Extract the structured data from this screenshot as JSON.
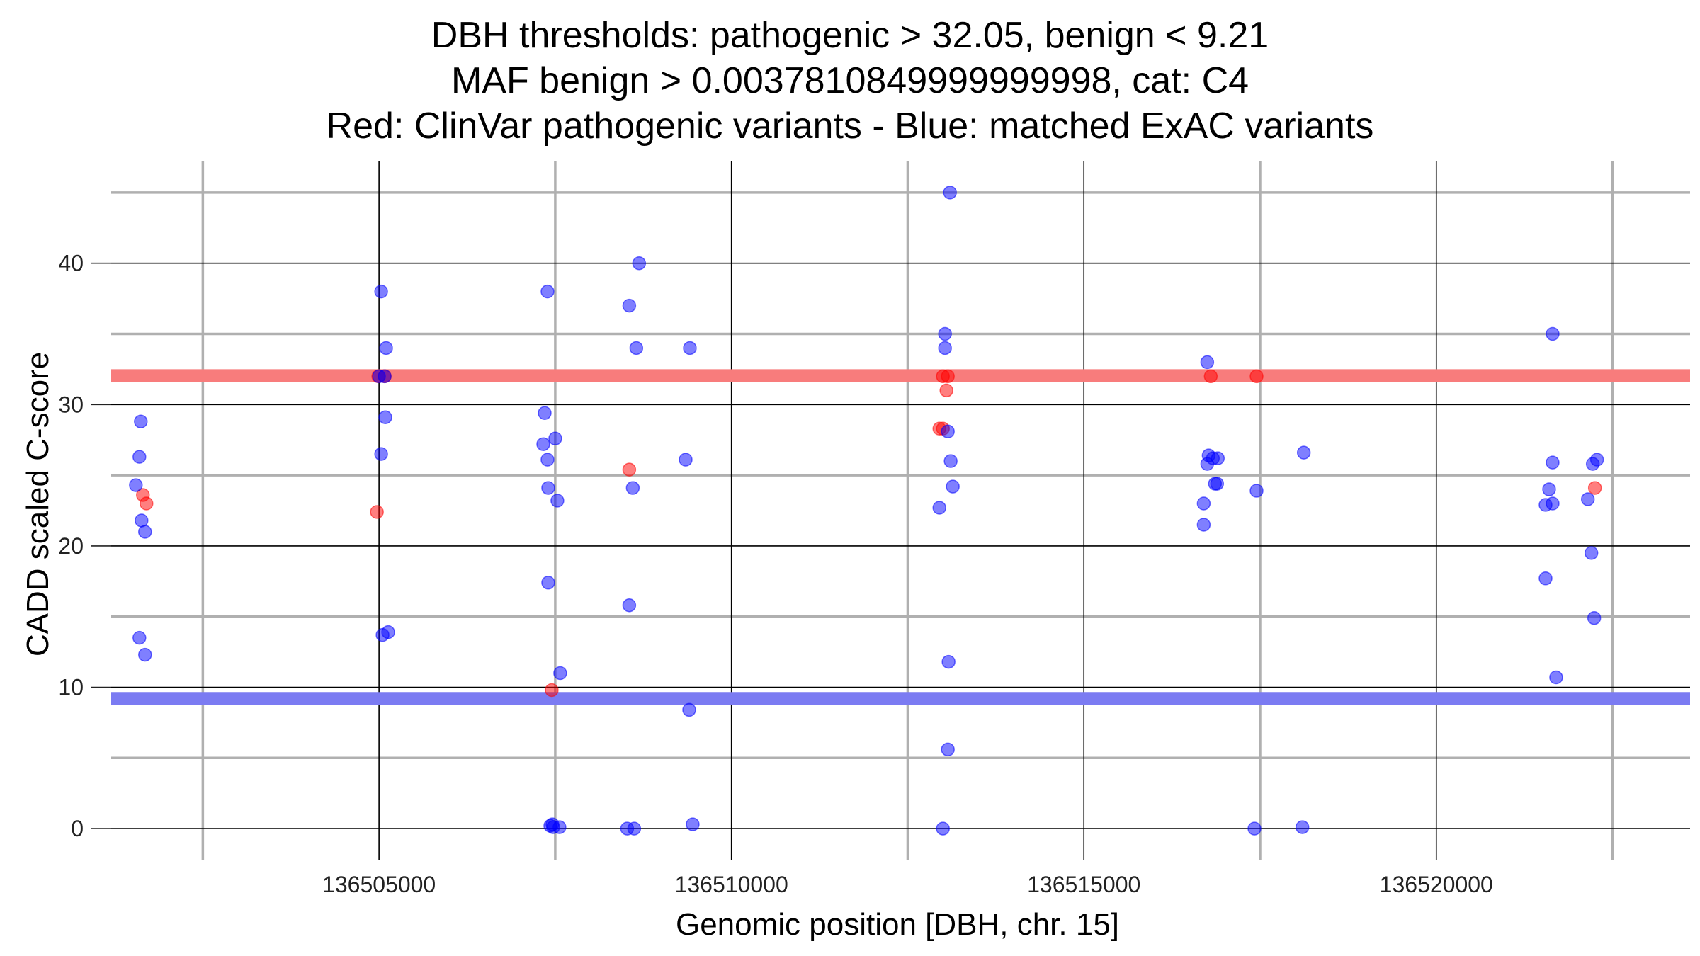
{
  "chart_data": {
    "type": "scatter",
    "title_lines": [
      "DBH thresholds: pathogenic > 32.05, benign < 9.21",
      "MAF benign > 0.0037810849999999998, cat: C4",
      "Red: ClinVar pathogenic variants - Blue: matched ExAC variants"
    ],
    "xlabel": "Genomic position [DBH, chr. 15]",
    "ylabel": "CADD scaled C-score",
    "xlim": [
      136501200,
      136523600
    ],
    "ylim": [
      -2.2,
      47.2
    ],
    "x_major_ticks": [
      136505000,
      136510000,
      136515000,
      136520000
    ],
    "x_minor_ticks": [
      136502500,
      136507500,
      136512500,
      136517500,
      136522500
    ],
    "y_major_ticks": [
      0,
      10,
      20,
      30,
      40
    ],
    "y_minor_ticks": [
      5,
      15,
      25,
      35,
      45
    ],
    "grid": true,
    "colors": {
      "pathogenic": "#ff0000",
      "benign": "#0000ff",
      "pathogenic_line": "#f87c7c",
      "benign_line": "#7b7bf2",
      "major_grid": "#000000",
      "minor_grid": "#b0b0b0"
    },
    "thresholds": [
      {
        "y": 32.05,
        "color": "#f87c7c"
      },
      {
        "y": 9.21,
        "color": "#7b7bf2"
      }
    ],
    "series": [
      {
        "color": "#ff0000",
        "points": [
          [
            136501650,
            23.6
          ],
          [
            136501700,
            23.0
          ],
          [
            136504970,
            22.4
          ],
          [
            136504990,
            32.0
          ],
          [
            136505080,
            32.0
          ],
          [
            136507450,
            9.8
          ],
          [
            136508550,
            25.4
          ],
          [
            136512950,
            28.3
          ],
          [
            136513000,
            28.3
          ],
          [
            136513000,
            32.0
          ],
          [
            136513050,
            31.0
          ],
          [
            136513070,
            32.0
          ],
          [
            136516800,
            32.0
          ],
          [
            136517450,
            32.0
          ],
          [
            136522250,
            24.1
          ]
        ]
      },
      {
        "color": "#0000ff",
        "points": [
          [
            136501550,
            24.3
          ],
          [
            136501600,
            26.3
          ],
          [
            136501620,
            28.8
          ],
          [
            136501630,
            21.8
          ],
          [
            136501680,
            21.0
          ],
          [
            136501600,
            13.5
          ],
          [
            136501680,
            12.3
          ],
          [
            136505030,
            38.0
          ],
          [
            136505000,
            32.0
          ],
          [
            136505030,
            26.5
          ],
          [
            136505100,
            34.0
          ],
          [
            136505080,
            32.0
          ],
          [
            136505090,
            29.1
          ],
          [
            136505050,
            13.7
          ],
          [
            136505130,
            13.9
          ],
          [
            136507350,
            29.4
          ],
          [
            136507330,
            27.2
          ],
          [
            136507390,
            38.0
          ],
          [
            136507400,
            24.1
          ],
          [
            136507390,
            26.1
          ],
          [
            136507500,
            27.6
          ],
          [
            136507530,
            23.2
          ],
          [
            136507400,
            17.4
          ],
          [
            136507570,
            11.0
          ],
          [
            136507430,
            0.2
          ],
          [
            136507470,
            0.1
          ],
          [
            136507560,
            0.1
          ],
          [
            136507460,
            0.3
          ],
          [
            136508690,
            40.0
          ],
          [
            136508550,
            37.0
          ],
          [
            136508650,
            34.0
          ],
          [
            136508600,
            24.1
          ],
          [
            136508550,
            15.8
          ],
          [
            136508520,
            0.0
          ],
          [
            136508620,
            0.0
          ],
          [
            136509410,
            34.0
          ],
          [
            136509350,
            26.1
          ],
          [
            136509400,
            8.4
          ],
          [
            136509450,
            0.3
          ],
          [
            136513100,
            45.0
          ],
          [
            136513030,
            35.0
          ],
          [
            136513030,
            34.0
          ],
          [
            136513070,
            28.1
          ],
          [
            136513110,
            26.0
          ],
          [
            136513140,
            24.2
          ],
          [
            136512950,
            22.7
          ],
          [
            136513080,
            11.8
          ],
          [
            136513070,
            5.6
          ],
          [
            136513000,
            0.0
          ],
          [
            136516750,
            33.0
          ],
          [
            136516770,
            26.4
          ],
          [
            136516830,
            26.2
          ],
          [
            136516900,
            26.2
          ],
          [
            136516750,
            25.8
          ],
          [
            136516860,
            24.4
          ],
          [
            136516890,
            24.4
          ],
          [
            136516700,
            23.0
          ],
          [
            136516700,
            21.5
          ],
          [
            136517450,
            23.9
          ],
          [
            136517420,
            0.0
          ],
          [
            136518120,
            26.6
          ],
          [
            136518100,
            0.1
          ],
          [
            136521650,
            35.0
          ],
          [
            136521650,
            25.9
          ],
          [
            136521600,
            24.0
          ],
          [
            136521550,
            22.9
          ],
          [
            136521650,
            23.0
          ],
          [
            136521550,
            17.7
          ],
          [
            136521700,
            10.7
          ],
          [
            136522150,
            23.3
          ],
          [
            136522220,
            25.8
          ],
          [
            136522280,
            26.1
          ],
          [
            136522200,
            19.5
          ],
          [
            136522240,
            14.9
          ]
        ]
      }
    ]
  }
}
